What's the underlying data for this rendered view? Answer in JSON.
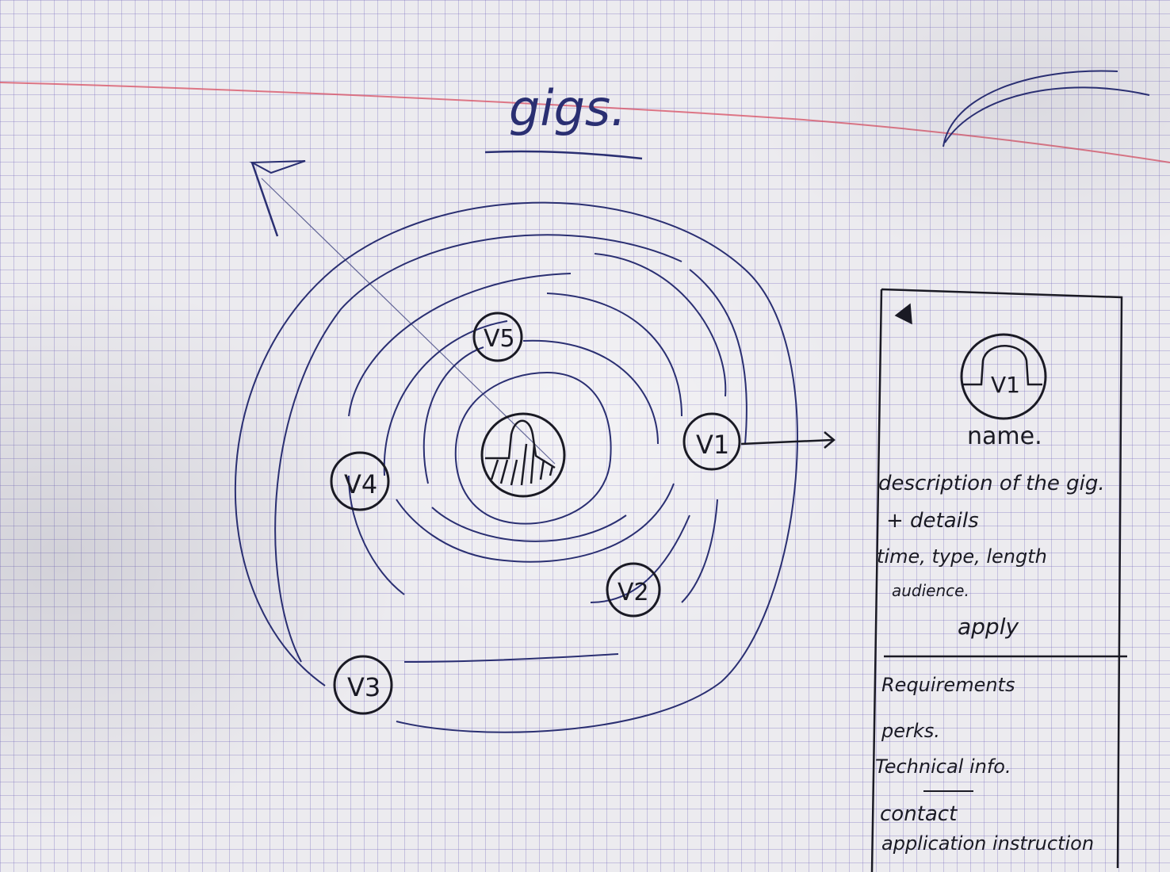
{
  "title": "gigs.",
  "center_node": {
    "icon": "hatched-blob-icon"
  },
  "venues": [
    {
      "label": "V5"
    },
    {
      "label": "V1"
    },
    {
      "label": "V4"
    },
    {
      "label": "V2"
    },
    {
      "label": "V3"
    }
  ],
  "arrow": {
    "label": "→"
  },
  "panel": {
    "back_icon": "triangle-back-icon",
    "avatar_label": "V1",
    "name": "name.",
    "description_line1": "description of the gig.",
    "description_line2": "+ details",
    "description_line3": "time, type, length",
    "description_line4": "audience.",
    "apply_label": "apply",
    "requirements": "Requirements",
    "perks": "perks.",
    "technical": "Technical info.",
    "contact": "contact",
    "application": "application instruction"
  },
  "colors": {
    "ink_black": "#1a1a24",
    "ink_blue": "#2a2f72",
    "grid": "#7c73c0",
    "margin_red": "#d9576a"
  }
}
